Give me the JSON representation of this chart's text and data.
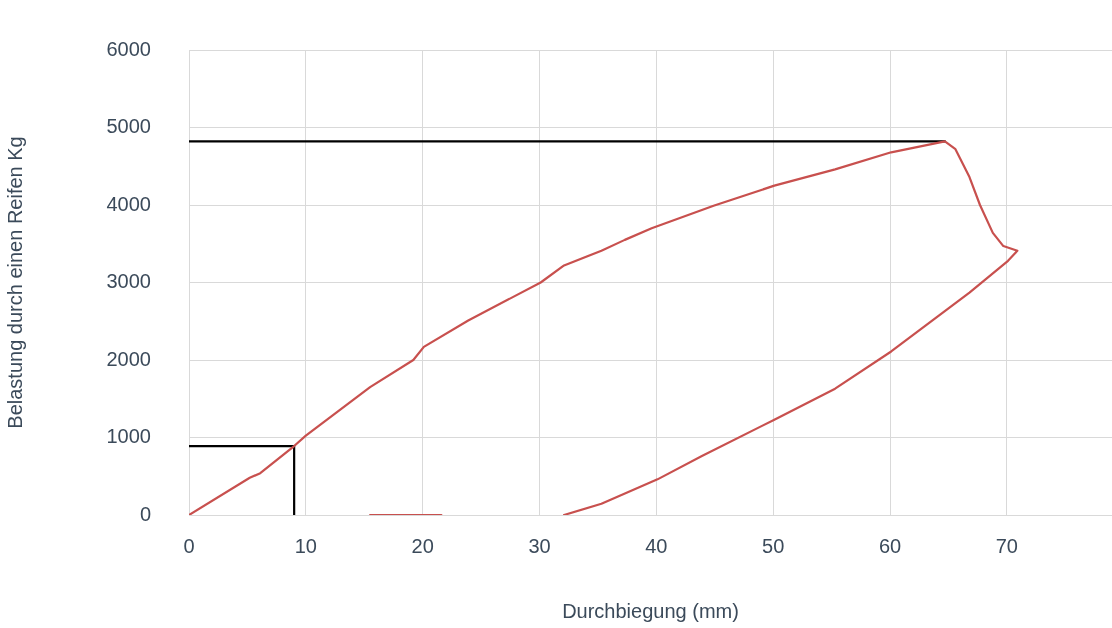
{
  "chart_data": {
    "type": "line",
    "xlabel": "Durchbiegung (mm)",
    "ylabel": "Belastung durch einen Reifen Kg",
    "xlim": [
      0,
      79
    ],
    "xticks": [
      0,
      10,
      20,
      30,
      40,
      50,
      60,
      70
    ],
    "ylim": [
      0,
      6000
    ],
    "yticks": [
      0,
      1000,
      2000,
      3000,
      4000,
      5000,
      6000
    ],
    "grid": true,
    "legend": false,
    "marker": "none",
    "line_style": "solid",
    "series": [
      {
        "color": "#c8504e",
        "x": [
          0,
          5.2,
          6.1,
          9,
          10,
          15.5,
          19.2,
          20.1,
          23.9,
          30.1,
          32.1,
          35.3,
          37.3,
          39.6,
          44.9,
          50.1,
          55.3,
          60.1,
          64.7,
          65.6,
          66.8,
          67.7,
          68.8,
          69.7,
          70.9,
          70.1,
          66.8,
          60.1,
          55.3,
          50.1,
          43.9,
          40.1,
          35.3,
          32.1,
          26.8,
          21.6,
          15.5
        ],
        "values": [
          0,
          480,
          540,
          890,
          1025,
          1650,
          2000,
          2170,
          2510,
          3000,
          3220,
          3410,
          3550,
          3700,
          3990,
          4250,
          4460,
          4680,
          4820,
          4720,
          4360,
          4000,
          3640,
          3470,
          3410,
          3280,
          2870,
          2110,
          1630,
          1230,
          760,
          460,
          145,
          0,
          null,
          0,
          0
        ]
      },
      {
        "color": "#000000",
        "x": [
          0,
          64.7
        ],
        "values": [
          4820,
          4820
        ]
      },
      {
        "color": "#000000",
        "x": [
          0,
          9,
          9
        ],
        "values": [
          890,
          890,
          0
        ]
      }
    ]
  }
}
